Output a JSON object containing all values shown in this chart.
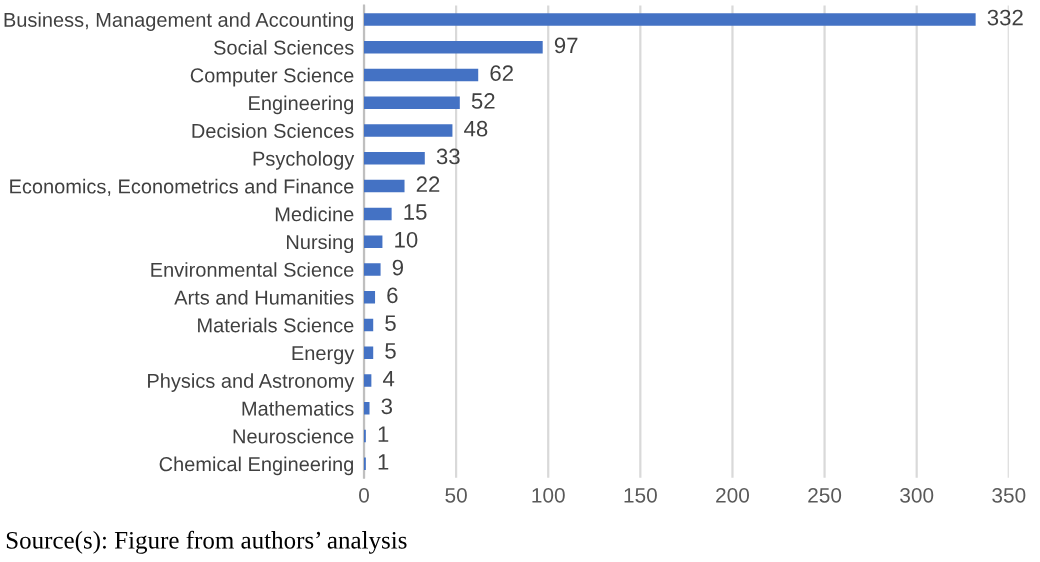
{
  "chart_data": {
    "type": "bar",
    "orientation": "horizontal",
    "categories": [
      "Business, Management and Accounting",
      "Social Sciences",
      "Computer Science",
      "Engineering",
      "Decision Sciences",
      "Psychology",
      "Economics, Econometrics and Finance",
      "Medicine",
      "Nursing",
      "Environmental Science",
      "Arts and Humanities",
      "Materials Science",
      "Energy",
      "Physics and Astronomy",
      "Mathematics",
      "Neuroscience",
      "Chemical Engineering"
    ],
    "values": [
      332,
      97,
      62,
      52,
      48,
      33,
      22,
      15,
      10,
      9,
      6,
      5,
      5,
      4,
      3,
      1,
      1
    ],
    "color": "#4472c4",
    "data_labels": true,
    "xlim": [
      0,
      350
    ],
    "xticks": [
      0,
      50,
      100,
      150,
      200,
      250,
      300,
      350
    ],
    "grid": "x",
    "annotations": [
      "Source(s): Figure from authors’ analysis"
    ]
  }
}
